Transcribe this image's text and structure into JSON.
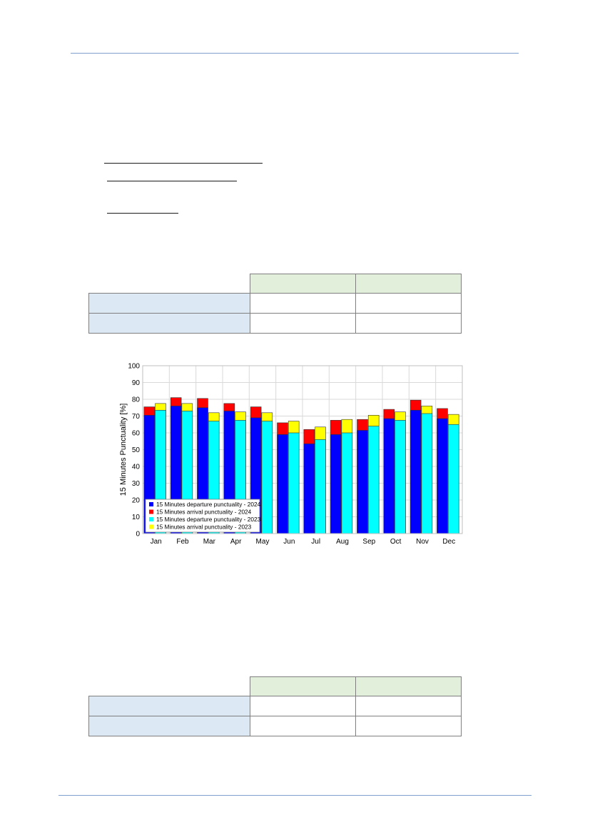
{
  "colors": {
    "departure_2024": "#0000ff",
    "arrival_2024": "#ff0000",
    "departure_2023": "#00ffff",
    "arrival_2023": "#ffff00",
    "header_cell": "#e2efda",
    "row_label_cell": "#dde8f5",
    "rule": "#7f9fce"
  },
  "chart_data": {
    "type": "bar",
    "title": "",
    "xlabel": "",
    "ylabel": "15 Minutes Punctuality [%]",
    "ylim": [
      0,
      100
    ],
    "yticks": [
      0,
      10,
      20,
      30,
      40,
      50,
      60,
      70,
      80,
      90,
      100
    ],
    "grid": true,
    "legend_position": "bottom-left",
    "categories": [
      "Jan",
      "Feb",
      "Mar",
      "Apr",
      "May",
      "Jun",
      "Jul",
      "Aug",
      "Sep",
      "Oct",
      "Nov",
      "Dec"
    ],
    "series": [
      {
        "name": "15 Minutes departure punctuality - 2024",
        "values": [
          70.5,
          76,
          75,
          73,
          69,
          59,
          53.5,
          59,
          61.5,
          68.5,
          73.5,
          68.5
        ]
      },
      {
        "name": "15 Minutes arrival punctuality - 2024",
        "values": [
          75.5,
          81,
          80.5,
          77.5,
          75.5,
          66,
          62,
          67.5,
          68,
          74,
          79.5,
          74.5
        ]
      },
      {
        "name": "15 Minutes departure punctuality - 2023",
        "values": [
          73.5,
          73,
          67,
          67.5,
          67,
          60,
          56,
          60,
          64,
          67.5,
          71.5,
          65
        ]
      },
      {
        "name": "15 Minutes arrival punctuality - 2023",
        "values": [
          77.5,
          77.5,
          72,
          72.5,
          72,
          67,
          63.5,
          68,
          70.5,
          72.5,
          76,
          71
        ]
      }
    ]
  }
}
